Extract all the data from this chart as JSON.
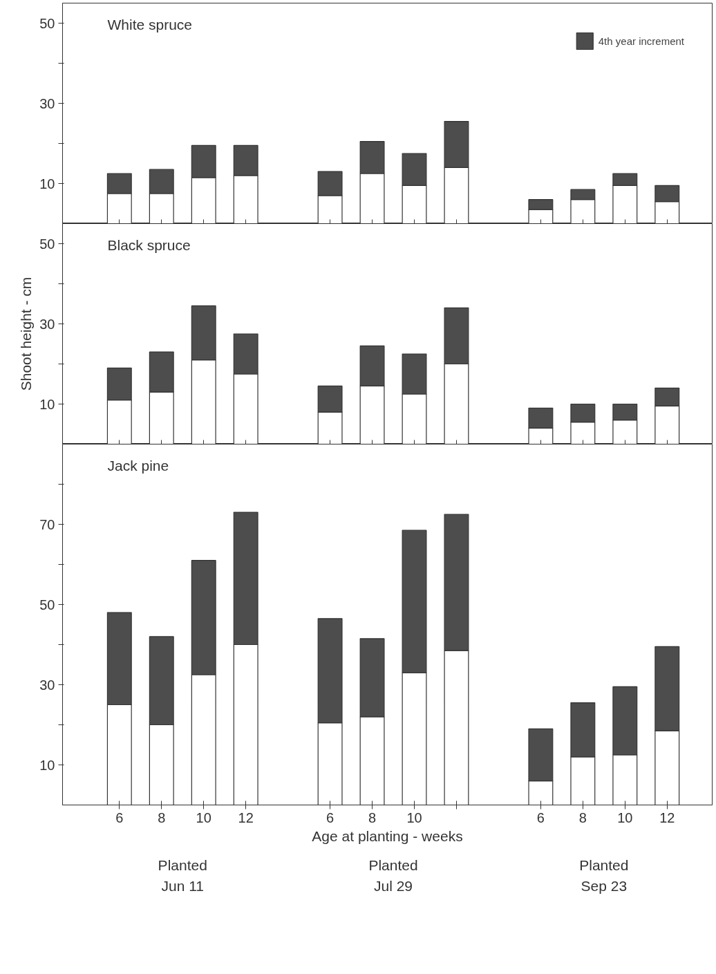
{
  "chart_data": [
    {
      "type": "bar",
      "stacked": true,
      "title": "White spruce",
      "categories": [
        "6",
        "8",
        "10",
        "12",
        "6",
        "8",
        "10",
        null,
        "6",
        "8",
        "10",
        "12"
      ],
      "series": [
        {
          "color": "#ffffff",
          "values": [
            7.5,
            7.5,
            11.5,
            12,
            7,
            12.5,
            9.5,
            14,
            3.5,
            6,
            9.5,
            5.5
          ]
        },
        {
          "name": "4th year increment",
          "color": "#4d4d4d",
          "values": [
            5,
            6,
            8,
            7.5,
            6,
            8,
            8,
            11.5,
            2.5,
            2.5,
            3,
            4
          ]
        }
      ],
      "ylim": [
        0,
        55
      ],
      "yticks": [
        10,
        {
          "value": 20,
          "label": null
        },
        30,
        {
          "value": 40,
          "label": null
        },
        50
      ],
      "legend": "top right",
      "tick_labels": "y"
    },
    {
      "type": "bar",
      "stacked": true,
      "title": "Black spruce",
      "ylabel": "Shoot height - cm",
      "categories": [
        "6",
        "8",
        "10",
        "12",
        "6",
        "8",
        "10",
        null,
        "6",
        "8",
        "10",
        "12"
      ],
      "series": [
        {
          "color": "#ffffff",
          "values": [
            11,
            13,
            21,
            17.5,
            8,
            14.5,
            12.5,
            20,
            4,
            5.5,
            6,
            9.5
          ]
        },
        {
          "color": "#4d4d4d",
          "values": [
            8,
            10,
            13.5,
            10,
            6.5,
            10,
            10,
            14,
            5,
            4.5,
            4,
            4.5
          ]
        }
      ],
      "ylim": [
        0,
        55
      ],
      "yticks": [
        10,
        {
          "value": 20,
          "label": null
        },
        30,
        {
          "value": 40,
          "label": null
        },
        50
      ],
      "tick_labels": "y"
    },
    {
      "type": "bar",
      "stacked": true,
      "title": "Jack pine",
      "xlabel": "Age at planting - weeks",
      "categories": [
        "6",
        "8",
        "10",
        "12",
        "6",
        "8",
        "10",
        null,
        "6",
        "8",
        "10",
        "12"
      ],
      "series": [
        {
          "color": "#ffffff",
          "values": [
            25,
            20,
            32.5,
            40,
            20.5,
            22,
            33,
            38.5,
            6,
            12,
            12.5,
            18.5
          ]
        },
        {
          "color": "#4d4d4d",
          "values": [
            23,
            22,
            28.5,
            33,
            26,
            19.5,
            35.5,
            34,
            13,
            13.5,
            17,
            21
          ]
        }
      ],
      "ylim": [
        0,
        90
      ],
      "yticks": [
        10,
        {
          "value": 20,
          "label": null
        },
        30,
        {
          "value": 40,
          "label": null
        },
        50,
        {
          "value": 60,
          "label": null
        },
        70,
        {
          "value": 80,
          "label": null
        }
      ],
      "annotations": [
        "Planted\nJun 11",
        "Planted\nJul 29",
        "Planted\nSep 23"
      ]
    }
  ]
}
